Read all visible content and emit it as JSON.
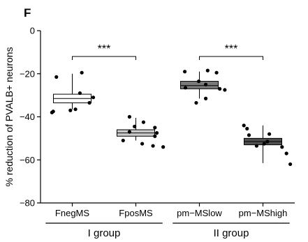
{
  "panel_label": "F",
  "chart_data": {
    "type": "box",
    "ylabel": "% reduction of PVALB+ neurons",
    "ylim": [
      -80,
      0
    ],
    "yticks": [
      0,
      -20,
      -40,
      -60,
      -80
    ],
    "categories": [
      "FnegMS",
      "FposMS",
      "pm−MSlow",
      "pm−MShigh"
    ],
    "boxes": [
      {
        "category": "FnegMS",
        "fill": "#ffffff",
        "q1": -33.5,
        "median": -31.5,
        "q3": -29.5,
        "whisker_low": -36.5,
        "whisker_high": -20,
        "points": [
          {
            "x": -0.25,
            "y": -21.5
          },
          {
            "x": 0.15,
            "y": -19.5
          },
          {
            "x": 0.12,
            "y": -29
          },
          {
            "x": 0.33,
            "y": -31
          },
          {
            "x": 0.27,
            "y": -33.5
          },
          {
            "x": -0.3,
            "y": -37.5
          },
          {
            "x": -0.32,
            "y": -38
          },
          {
            "x": 0.05,
            "y": -36.5
          },
          {
            "x": -0.03,
            "y": -37
          }
        ]
      },
      {
        "category": "FposMS",
        "fill": "#c9c9c9",
        "q1": -49,
        "median": -47.5,
        "q3": -46,
        "whisker_low": -51,
        "whisker_high": -40.5,
        "points": [
          {
            "x": -0.1,
            "y": -40
          },
          {
            "x": 0.12,
            "y": -42.5
          },
          {
            "x": -0.02,
            "y": -44.5
          },
          {
            "x": 0.3,
            "y": -45
          },
          {
            "x": -0.1,
            "y": -47
          },
          {
            "x": 0.33,
            "y": -47.5
          },
          {
            "x": 0.3,
            "y": -49
          },
          {
            "x": -0.2,
            "y": -51
          },
          {
            "x": 0.1,
            "y": -52.5
          },
          {
            "x": 0.27,
            "y": -53.5
          },
          {
            "x": 0.43,
            "y": -54
          }
        ]
      },
      {
        "category": "pm−MSlow",
        "fill": "#7a7a7a",
        "q1": -27,
        "median": -25.5,
        "q3": -23.5,
        "whisker_low": -31.5,
        "whisker_high": -19,
        "points": [
          {
            "x": -0.23,
            "y": -19
          },
          {
            "x": 0.13,
            "y": -18.5
          },
          {
            "x": 0.27,
            "y": -19.5
          },
          {
            "x": -0.01,
            "y": -23.5
          },
          {
            "x": 0.1,
            "y": -25
          },
          {
            "x": -0.22,
            "y": -26.5
          },
          {
            "x": 0.32,
            "y": -27
          },
          {
            "x": 0.4,
            "y": -27.5
          },
          {
            "x": 0.1,
            "y": -31.5
          },
          {
            "x": -0.05,
            "y": -33.5
          }
        ]
      },
      {
        "category": "pm−MShigh",
        "fill": "#505050",
        "q1": -53,
        "median": -51.5,
        "q3": -50,
        "whisker_low": -61.5,
        "whisker_high": -44,
        "points": [
          {
            "x": -0.3,
            "y": -44
          },
          {
            "x": -0.25,
            "y": -45.5
          },
          {
            "x": -0.22,
            "y": -48.5
          },
          {
            "x": 0.1,
            "y": -48
          },
          {
            "x": 0.07,
            "y": -51.5
          },
          {
            "x": -0.1,
            "y": -53.5
          },
          {
            "x": 0.02,
            "y": -52.5
          },
          {
            "x": 0.3,
            "y": -54
          },
          {
            "x": 0.37,
            "y": -57
          },
          {
            "x": 0.43,
            "y": -62
          }
        ]
      }
    ],
    "significance": [
      {
        "from": "FnegMS",
        "to": "FposMS",
        "label": "***",
        "y": -12
      },
      {
        "from": "pm−MSlow",
        "to": "pm−MShigh",
        "label": "***",
        "y": -12
      }
    ],
    "groups": [
      {
        "label": "I group",
        "categories": [
          "FnegMS",
          "FposMS"
        ]
      },
      {
        "label": "II group",
        "categories": [
          "pm−MSlow",
          "pm−MShigh"
        ]
      }
    ]
  }
}
